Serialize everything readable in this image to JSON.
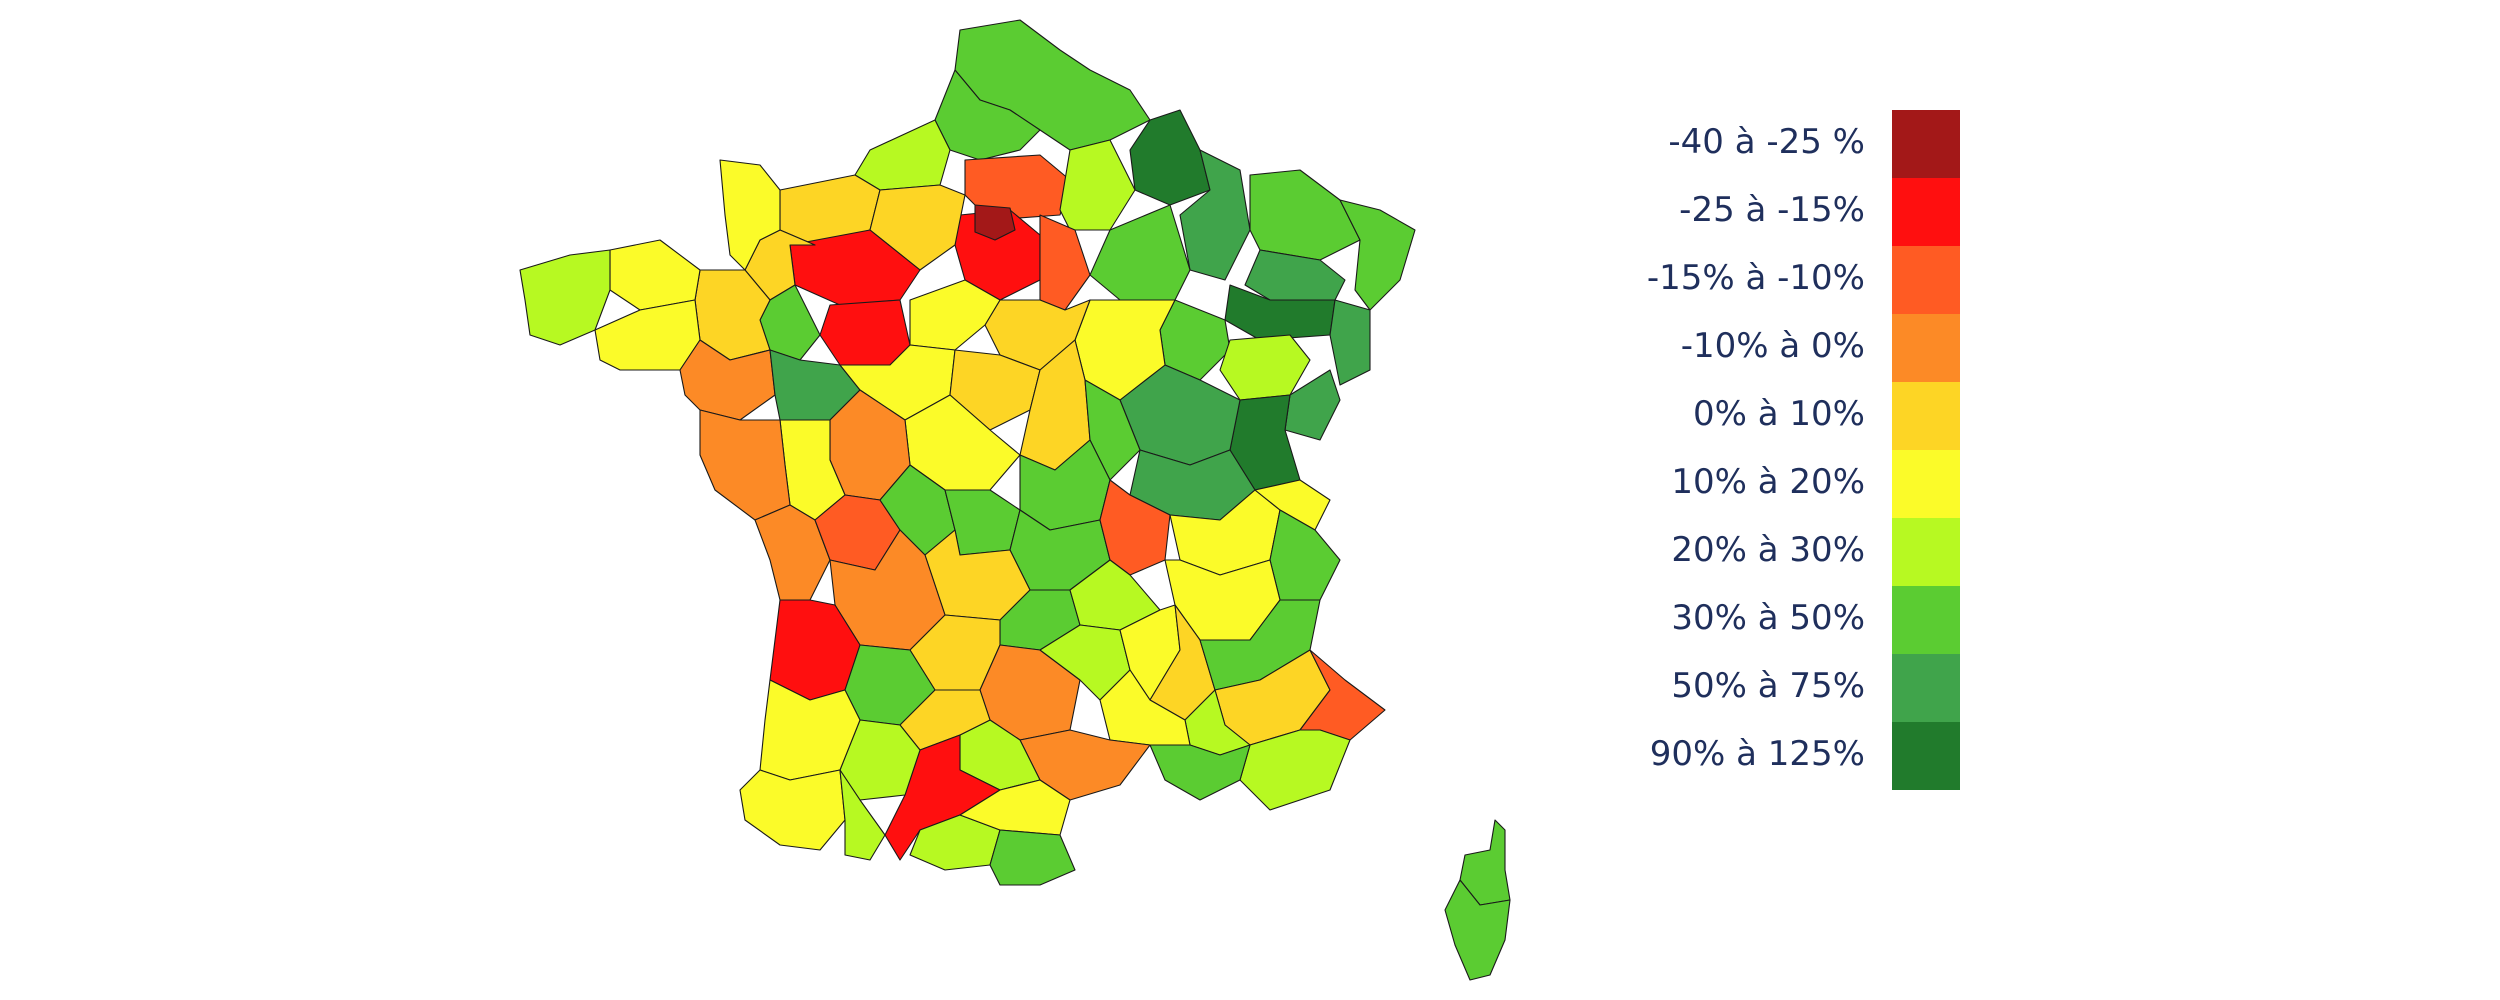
{
  "map": {
    "legend": [
      {
        "label": "-40 à -25 %",
        "color": "#a31818"
      },
      {
        "label": "-25 à -15%",
        "color": "#ff0f0f"
      },
      {
        "label": "-15% à -10%",
        "color": "#ff5b23"
      },
      {
        "label": "-10% à 0%",
        "color": "#fc8a26"
      },
      {
        "label": "0% à 10%",
        "color": "#fdd525"
      },
      {
        "label": "10% à 20%",
        "color": "#fbfb29"
      },
      {
        "label": "20% à 30%",
        "color": "#b7f922"
      },
      {
        "label": "30% à 50%",
        "color": "#5bcc32"
      },
      {
        "label": "50% à 75%",
        "color": "#40a44b"
      },
      {
        "label": "90% à 125%",
        "color": "#217b2c"
      }
    ]
  }
}
